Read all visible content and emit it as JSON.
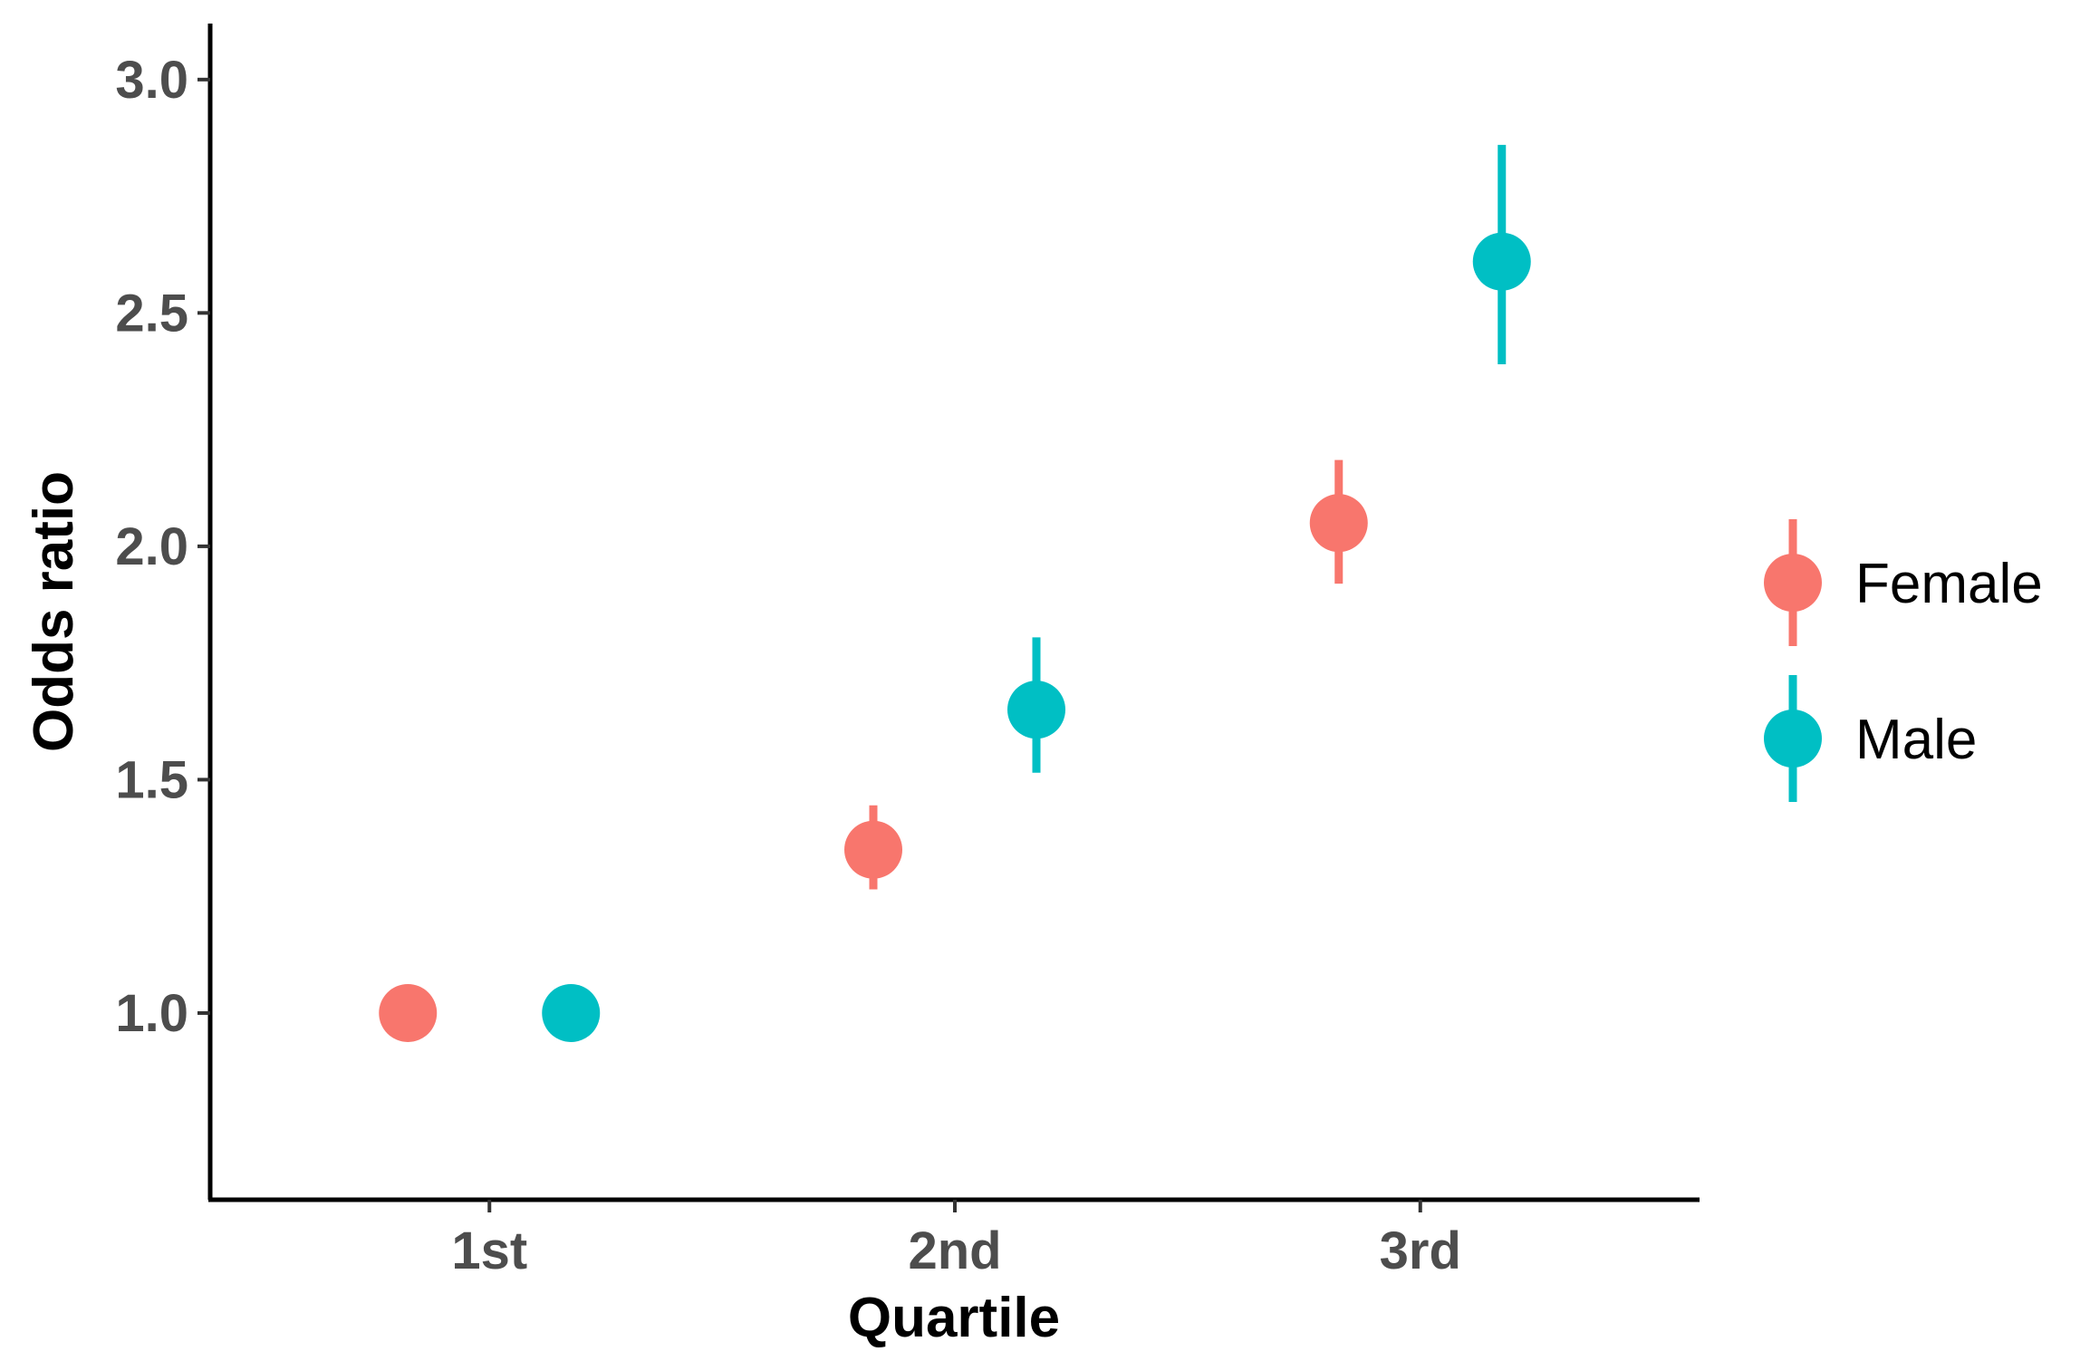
{
  "chart_data": {
    "type": "scatter",
    "xlabel": "Quartile",
    "ylabel": "Odds ratio",
    "categories": [
      "1st",
      "2nd",
      "3rd"
    ],
    "ylim": [
      0.6,
      3.12
    ],
    "yticks": [
      "1.0",
      "1.5",
      "2.0",
      "2.5",
      "3.0"
    ],
    "grid": false,
    "legend_position": "right",
    "series": [
      {
        "name": "Female",
        "color": "#F8766D",
        "values": [
          1.0,
          1.35,
          2.05
        ],
        "lower": [
          null,
          1.265,
          1.92
        ],
        "upper": [
          null,
          1.445,
          2.185
        ]
      },
      {
        "name": "Male",
        "color": "#00BFC4",
        "values": [
          1.0,
          1.65,
          2.61
        ],
        "lower": [
          null,
          1.515,
          2.39
        ],
        "upper": [
          null,
          1.805,
          2.86
        ]
      }
    ]
  }
}
